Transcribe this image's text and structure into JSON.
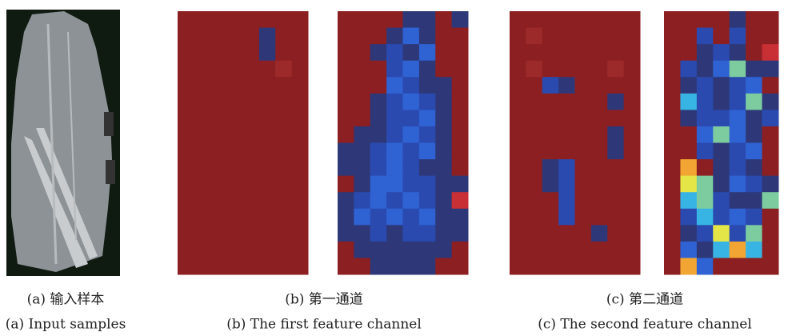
{
  "panels": [
    {
      "caption_zh": "(a) 输入样本",
      "caption_en": "(a) Input samples"
    },
    {
      "caption_zh": "(b) 第一通道",
      "caption_en": "(b) The first feature channel"
    },
    {
      "caption_zh": "(c) 第二通道",
      "caption_en": "(c) The second feature channel"
    }
  ]
}
